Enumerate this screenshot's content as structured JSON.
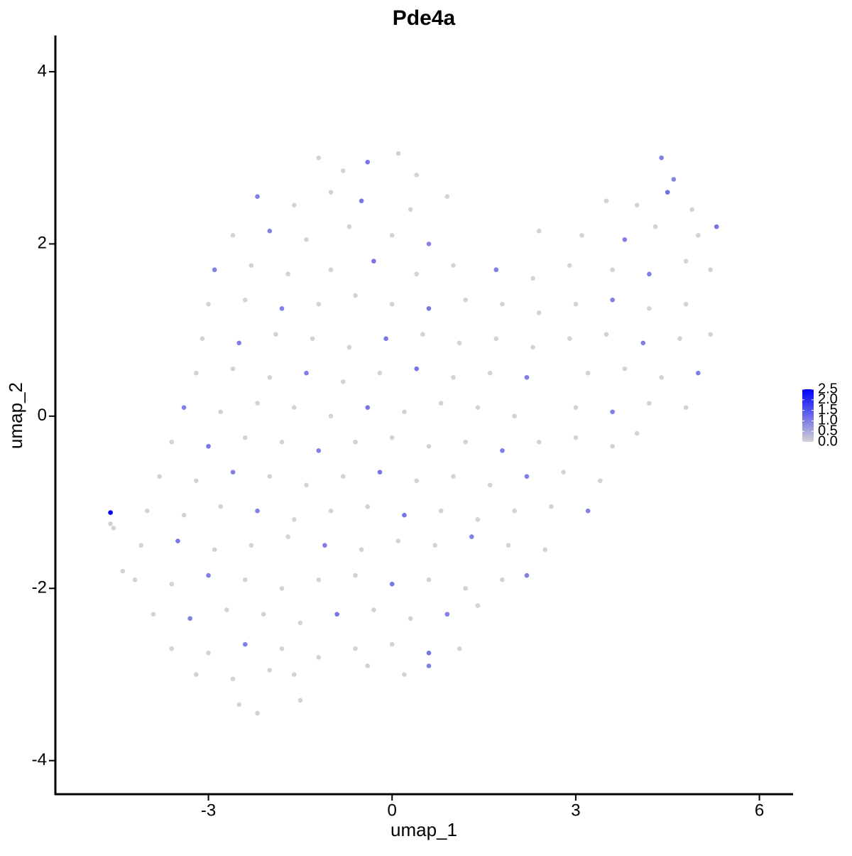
{
  "chart_data": {
    "type": "scatter",
    "title": "Pde4a",
    "x_label": "umap_1",
    "y_label": "umap_2",
    "xlim": [
      -5.5,
      6.55
    ],
    "ylim": [
      -4.39,
      4.42
    ],
    "xticks": [
      -3,
      0,
      3,
      6
    ],
    "yticks": [
      -4,
      -2,
      0,
      2,
      4
    ],
    "color_low": "#d3d3d3",
    "color_high": "#0000ff",
    "color_range": [
      0,
      2.5
    ],
    "color_ticks": [
      {
        "value": 0,
        "label": "0.0"
      },
      {
        "value": 0.5,
        "label": "0.5"
      },
      {
        "value": 1,
        "label": "1.0"
      },
      {
        "value": 1.5,
        "label": "1.5"
      },
      {
        "value": 2,
        "label": "2.0"
      },
      {
        "value": 2.5,
        "label": "2.5"
      }
    ],
    "x": [
      -1.2,
      -0.8,
      -0.4,
      0.1,
      0.4,
      4.4,
      4.6,
      -2.2,
      -1.6,
      -1.0,
      -0.5,
      0.3,
      0.9,
      3.5,
      4.0,
      4.5,
      4.9,
      -2.6,
      -2.0,
      -1.4,
      -0.7,
      0,
      0.6,
      2.4,
      3.1,
      3.8,
      4.3,
      5.0,
      5.3,
      -2.9,
      -2.3,
      -1.7,
      -1.0,
      -0.3,
      0.4,
      1.0,
      1.7,
      2.3,
      2.9,
      3.6,
      4.2,
      4.8,
      5.2,
      -3.0,
      -2.4,
      -1.8,
      -1.2,
      -0.6,
      0,
      0.6,
      1.2,
      1.8,
      2.4,
      3.0,
      3.6,
      4.2,
      4.8,
      -3.1,
      -2.5,
      -1.9,
      -1.3,
      -0.7,
      -0.1,
      0.5,
      1.1,
      1.7,
      2.3,
      2.9,
      3.5,
      4.1,
      4.7,
      5.2,
      -3.2,
      -2.6,
      -2.0,
      -1.4,
      -0.8,
      -0.2,
      0.4,
      1.0,
      1.6,
      2.2,
      3.2,
      3.8,
      4.4,
      5.0,
      -3.4,
      -2.8,
      -2.2,
      -1.6,
      -1.0,
      -0.4,
      0.2,
      0.8,
      1.4,
      2.0,
      3.0,
      3.6,
      4.2,
      4.8,
      -3.6,
      -3.0,
      -2.4,
      -1.8,
      -1.2,
      -0.6,
      0,
      0.6,
      1.2,
      1.8,
      2.4,
      3.0,
      3.6,
      4.0,
      -3.8,
      -3.2,
      -2.6,
      -2.0,
      -1.4,
      -0.8,
      -0.2,
      0.4,
      1.0,
      1.6,
      2.2,
      2.8,
      3.4,
      -4.0,
      -3.4,
      -2.8,
      -2.2,
      -1.6,
      -1.0,
      -0.4,
      0.2,
      0.8,
      1.4,
      2.0,
      2.6,
      3.2,
      -4.1,
      -3.5,
      -2.9,
      -2.3,
      -1.7,
      -1.1,
      -0.5,
      0.1,
      0.7,
      1.3,
      1.9,
      2.5,
      -4.2,
      -3.6,
      -3.0,
      -2.4,
      -1.8,
      -1.2,
      -0.6,
      0,
      0.6,
      1.2,
      1.8,
      2.2,
      -3.9,
      -3.3,
      -2.7,
      -2.1,
      -1.5,
      -0.9,
      -0.3,
      0.3,
      0.9,
      1.4,
      -3.6,
      -3.0,
      -2.4,
      -1.8,
      -1.2,
      -0.6,
      0,
      0.6,
      1.1,
      -3.2,
      -2.6,
      -2.0,
      -1.6,
      -0.4,
      0.2,
      0.6,
      -2.5,
      -2.2,
      -1.5,
      -4.6,
      -4.6,
      -4.55,
      -4.4
    ],
    "y": [
      3.0,
      2.85,
      2.95,
      3.05,
      2.8,
      3.0,
      2.75,
      2.55,
      2.45,
      2.6,
      2.5,
      2.4,
      2.55,
      2.5,
      2.45,
      2.6,
      2.4,
      2.1,
      2.15,
      2.05,
      2.2,
      2.1,
      2.0,
      2.15,
      2.1,
      2.05,
      2.2,
      2.1,
      2.2,
      1.7,
      1.75,
      1.65,
      1.7,
      1.8,
      1.65,
      1.75,
      1.7,
      1.6,
      1.75,
      1.7,
      1.65,
      1.8,
      1.7,
      1.3,
      1.35,
      1.25,
      1.3,
      1.4,
      1.3,
      1.25,
      1.35,
      1.3,
      1.2,
      1.3,
      1.35,
      1.25,
      1.3,
      0.9,
      0.85,
      0.95,
      0.9,
      0.8,
      0.9,
      0.95,
      0.85,
      0.9,
      0.8,
      0.9,
      0.95,
      0.85,
      0.9,
      0.95,
      0.5,
      0.55,
      0.45,
      0.5,
      0.4,
      0.5,
      0.55,
      0.45,
      0.5,
      0.45,
      0.5,
      0.55,
      0.45,
      0.5,
      0.1,
      0.05,
      0.15,
      0.1,
      0.0,
      0.1,
      0.05,
      0.15,
      0.1,
      0.0,
      0.1,
      0.05,
      0.15,
      0.1,
      -0.3,
      -0.35,
      -0.25,
      -0.3,
      -0.4,
      -0.3,
      -0.25,
      -0.35,
      -0.3,
      -0.4,
      -0.3,
      -0.25,
      -0.35,
      -0.2,
      -0.7,
      -0.75,
      -0.65,
      -0.7,
      -0.8,
      -0.7,
      -0.65,
      -0.75,
      -0.7,
      -0.8,
      -0.7,
      -0.65,
      -0.75,
      -1.1,
      -1.15,
      -1.05,
      -1.1,
      -1.2,
      -1.1,
      -1.05,
      -1.15,
      -1.1,
      -1.2,
      -1.1,
      -1.05,
      -1.1,
      -1.5,
      -1.45,
      -1.55,
      -1.5,
      -1.4,
      -1.5,
      -1.55,
      -1.45,
      -1.5,
      -1.4,
      -1.5,
      -1.55,
      -1.9,
      -1.95,
      -1.85,
      -1.9,
      -2.0,
      -1.9,
      -1.85,
      -1.95,
      -1.9,
      -2.0,
      -1.9,
      -1.85,
      -2.3,
      -2.35,
      -2.25,
      -2.3,
      -2.4,
      -2.3,
      -2.25,
      -2.35,
      -2.3,
      -2.2,
      -2.7,
      -2.75,
      -2.65,
      -2.7,
      -2.8,
      -2.7,
      -2.65,
      -2.75,
      -2.7,
      -3.0,
      -3.05,
      -2.95,
      -3.0,
      -2.9,
      -3.0,
      -2.9,
      -3.35,
      -3.45,
      -3.3,
      -1.12,
      -1.25,
      -1.3,
      -1.8
    ],
    "values": [
      0,
      0,
      1.1,
      0,
      0,
      1.0,
      0.9,
      1.0,
      0,
      0,
      1.1,
      0,
      0,
      0,
      0,
      1.2,
      0,
      0,
      1.0,
      0,
      0,
      0,
      0.9,
      0,
      0,
      1.0,
      0,
      0,
      1.1,
      1.0,
      0,
      0,
      0,
      1.1,
      0,
      0,
      1.0,
      0,
      0,
      0,
      1.0,
      0,
      0,
      0,
      0,
      1.0,
      0,
      0,
      0,
      1.1,
      0,
      0,
      0,
      0,
      1.0,
      0,
      0,
      0,
      1.0,
      0,
      0,
      0,
      1.1,
      0,
      0,
      0,
      0,
      0,
      0,
      1.0,
      0,
      0,
      0,
      0,
      0,
      1.0,
      0,
      0,
      1.1,
      0,
      0,
      1.0,
      0,
      0,
      0,
      1.0,
      1.0,
      0,
      0,
      0,
      0,
      1.1,
      0,
      0,
      0,
      0,
      0,
      1.0,
      0,
      0,
      0,
      1.1,
      0,
      0,
      1.0,
      0,
      0,
      0,
      0,
      1.0,
      0,
      0,
      0,
      0,
      0,
      0,
      1.0,
      0,
      0,
      0,
      1.1,
      0,
      0,
      0,
      1.0,
      0,
      0,
      0,
      0,
      0,
      1.0,
      0,
      0,
      0,
      1.1,
      0,
      0,
      0,
      0,
      1.0,
      0,
      1.1,
      0,
      0,
      0,
      1.0,
      0,
      0,
      0,
      1.0,
      0,
      0,
      0,
      0,
      1.0,
      0,
      0,
      0,
      0,
      1.1,
      0,
      0,
      0,
      1.0,
      0,
      1.0,
      0,
      0,
      0,
      1.1,
      0,
      0,
      1.0,
      0,
      0,
      0,
      1.0,
      0,
      0,
      0,
      0,
      1.1,
      0,
      0,
      0,
      0,
      0,
      0,
      0,
      1.0,
      0,
      0,
      0,
      2.5,
      0,
      0,
      0
    ]
  }
}
